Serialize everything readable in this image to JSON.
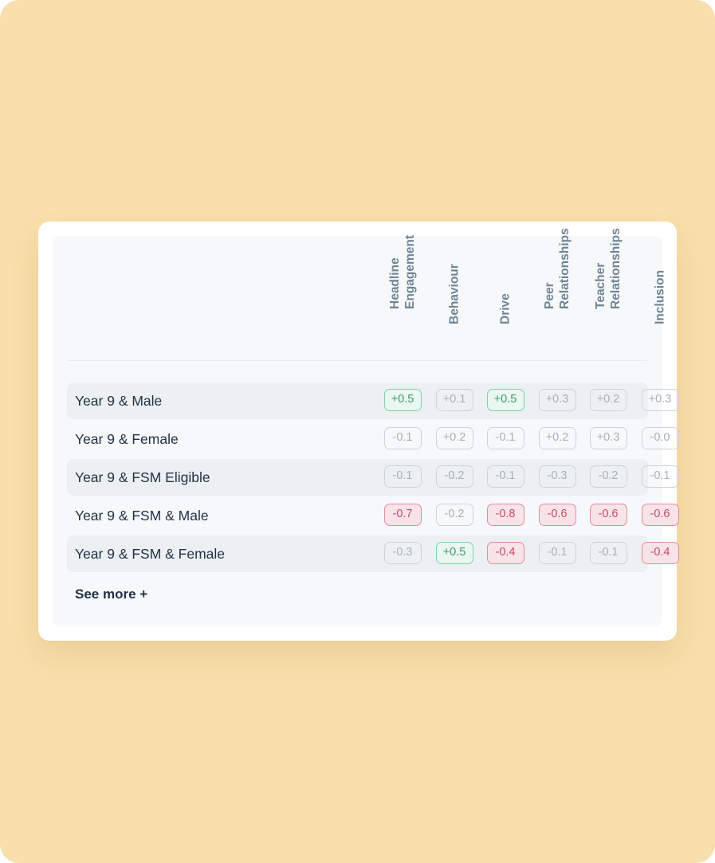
{
  "columns": [
    {
      "label": "Headline\nEngagement"
    },
    {
      "label": "Behaviour"
    },
    {
      "label": "Drive"
    },
    {
      "label": "Peer\nRelationships"
    },
    {
      "label": "Teacher\nRelationships"
    },
    {
      "label": "Inclusion"
    }
  ],
  "rows": [
    {
      "label": "Year 9 & Male",
      "cells": [
        {
          "value": "+0.5",
          "status": "pos"
        },
        {
          "value": "+0.1",
          "status": "neutral"
        },
        {
          "value": "+0.5",
          "status": "pos"
        },
        {
          "value": "+0.3",
          "status": "neutral"
        },
        {
          "value": "+0.2",
          "status": "neutral"
        },
        {
          "value": "+0.3",
          "status": "neutral"
        }
      ]
    },
    {
      "label": "Year 9 & Female",
      "cells": [
        {
          "value": "-0.1",
          "status": "neutral"
        },
        {
          "value": "+0.2",
          "status": "neutral"
        },
        {
          "value": "-0.1",
          "status": "neutral"
        },
        {
          "value": "+0.2",
          "status": "neutral"
        },
        {
          "value": "+0.3",
          "status": "neutral"
        },
        {
          "value": "-0.0",
          "status": "neutral"
        }
      ]
    },
    {
      "label": "Year 9 & FSM Eligible",
      "cells": [
        {
          "value": "-0.1",
          "status": "neutral"
        },
        {
          "value": "-0.2",
          "status": "neutral"
        },
        {
          "value": "-0.1",
          "status": "neutral"
        },
        {
          "value": "-0.3",
          "status": "neutral"
        },
        {
          "value": "-0.2",
          "status": "neutral"
        },
        {
          "value": "-0.1",
          "status": "neutral"
        }
      ]
    },
    {
      "label": "Year 9 & FSM & Male",
      "cells": [
        {
          "value": "-0.7",
          "status": "neg"
        },
        {
          "value": "-0.2",
          "status": "neutral"
        },
        {
          "value": "-0.8",
          "status": "neg"
        },
        {
          "value": "-0.6",
          "status": "neg"
        },
        {
          "value": "-0.6",
          "status": "neg"
        },
        {
          "value": "-0.6",
          "status": "neg"
        }
      ]
    },
    {
      "label": "Year 9 & FSM & Female",
      "cells": [
        {
          "value": "-0.3",
          "status": "neutral"
        },
        {
          "value": "+0.5",
          "status": "pos"
        },
        {
          "value": "-0.4",
          "status": "neg"
        },
        {
          "value": "-0.1",
          "status": "neutral"
        },
        {
          "value": "-0.1",
          "status": "neutral"
        },
        {
          "value": "-0.4",
          "status": "neg"
        }
      ]
    }
  ],
  "see_more_label": "See more +",
  "colors": {
    "background": "#f9dfab",
    "positive": "#3f9a6c",
    "negative": "#c44a62",
    "neutral": "#a7b0bb",
    "row_text": "#1f3046",
    "header_text": "#6e8496"
  }
}
